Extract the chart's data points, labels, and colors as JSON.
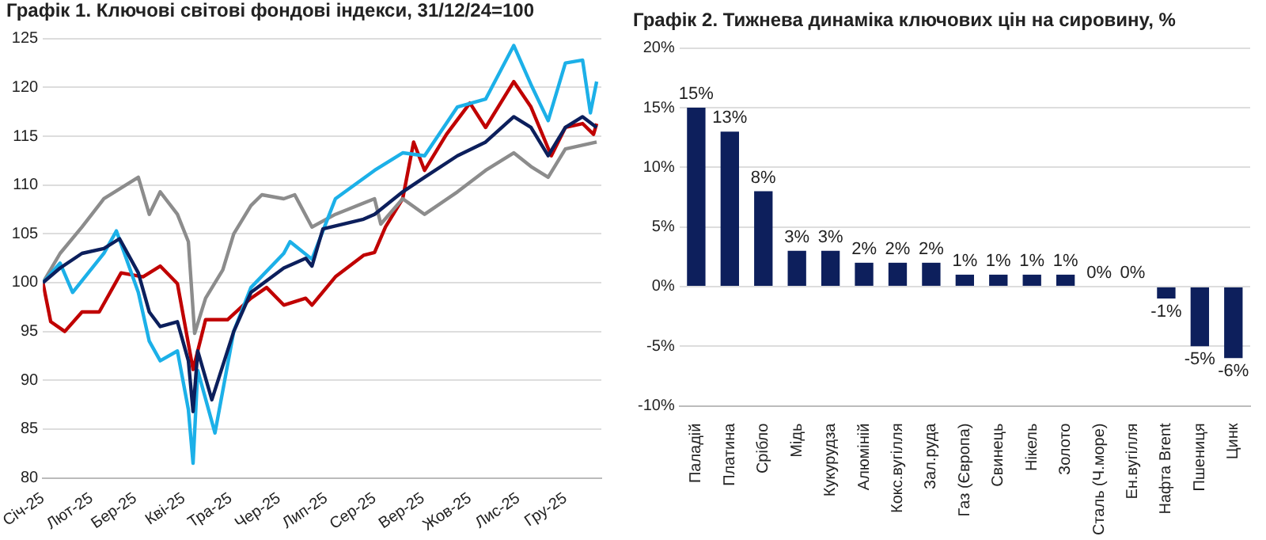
{
  "chart_data": [
    {
      "type": "line",
      "title": "Графік 1. Ключові світові фондові індекси, 31/12/24=100",
      "xlim": [
        "2025-01-01",
        "2025-12-24"
      ],
      "xticks": [
        {
          "value": "2025-01-01",
          "label": "Січ-25"
        },
        {
          "value": "2025-02-01",
          "label": "Лют-25"
        },
        {
          "value": "2025-03-01",
          "label": "Бер-25"
        },
        {
          "value": "2025-04-01",
          "label": "Кві-25"
        },
        {
          "value": "2025-05-01",
          "label": "Тра-25"
        },
        {
          "value": "2025-06-01",
          "label": "Чер-25"
        },
        {
          "value": "2025-07-01",
          "label": "Лип-25"
        },
        {
          "value": "2025-08-01",
          "label": "Сер-25"
        },
        {
          "value": "2025-09-01",
          "label": "Вер-25"
        },
        {
          "value": "2025-10-01",
          "label": "Жов-25"
        },
        {
          "value": "2025-11-01",
          "label": "Лис-25"
        },
        {
          "value": "2025-12-01",
          "label": "Гру-25"
        }
      ],
      "ylim": [
        80,
        125
      ],
      "yticks": [
        80,
        85,
        90,
        95,
        100,
        105,
        110,
        115,
        120,
        125
      ],
      "grid": "y",
      "marker": "none",
      "series": [
        {
          "color": "#0c1f5c",
          "x": [
            "2025-01-01",
            "2025-01-12",
            "2025-01-26",
            "2025-02-09",
            "2025-02-19",
            "2025-03-03",
            "2025-03-10",
            "2025-03-17",
            "2025-03-28",
            "2025-04-04",
            "2025-04-07",
            "2025-04-10",
            "2025-04-19",
            "2025-05-03",
            "2025-05-14",
            "2025-06-04",
            "2025-06-18",
            "2025-06-22",
            "2025-06-29",
            "2025-07-25",
            "2025-08-01",
            "2025-08-19",
            "2025-09-02",
            "2025-09-23",
            "2025-10-11",
            "2025-10-29",
            "2025-11-09",
            "2025-11-20",
            "2025-12-01",
            "2025-12-12",
            "2025-12-21"
          ],
          "values": [
            100,
            101.5,
            103,
            103.5,
            104.5,
            101,
            97,
            95.5,
            96,
            92,
            86.8,
            93,
            88,
            95,
            99,
            101.5,
            102.5,
            101.7,
            105.5,
            106.5,
            107,
            109.3,
            110.8,
            113,
            114.4,
            117,
            115.9,
            113,
            115.9,
            117,
            115.9
          ]
        },
        {
          "color": "#1cb0e8",
          "x": [
            "2025-01-01",
            "2025-01-12",
            "2025-01-20",
            "2025-02-09",
            "2025-02-17",
            "2025-03-03",
            "2025-03-10",
            "2025-03-17",
            "2025-03-28",
            "2025-04-04",
            "2025-04-07",
            "2025-04-10",
            "2025-04-21",
            "2025-05-03",
            "2025-05-14",
            "2025-06-04",
            "2025-06-08",
            "2025-06-22",
            "2025-07-07",
            "2025-08-01",
            "2025-08-19",
            "2025-09-02",
            "2025-09-23",
            "2025-10-11",
            "2025-10-29",
            "2025-11-09",
            "2025-11-20",
            "2025-12-01",
            "2025-12-12",
            "2025-12-17",
            "2025-12-21"
          ],
          "values": [
            100,
            102,
            99,
            103,
            105.3,
            99,
            94,
            92,
            93,
            87,
            81.5,
            91,
            84.6,
            95,
            99.5,
            103,
            104.2,
            102.4,
            108.6,
            111.5,
            113.3,
            113,
            118,
            118.8,
            124.3,
            120.3,
            116.6,
            122.5,
            122.8,
            117.4,
            120.6
          ]
        },
        {
          "color": "#8c8c8c",
          "x": [
            "2025-01-01",
            "2025-01-12",
            "2025-01-26",
            "2025-02-09",
            "2025-03-03",
            "2025-03-10",
            "2025-03-17",
            "2025-03-28",
            "2025-04-04",
            "2025-04-08",
            "2025-04-15",
            "2025-04-26",
            "2025-05-03",
            "2025-05-14",
            "2025-05-21",
            "2025-06-04",
            "2025-06-11",
            "2025-06-22",
            "2025-07-07",
            "2025-08-01",
            "2025-08-05",
            "2025-08-19",
            "2025-09-02",
            "2025-09-23",
            "2025-10-11",
            "2025-10-29",
            "2025-11-09",
            "2025-11-20",
            "2025-12-01",
            "2025-12-21"
          ],
          "values": [
            100,
            103,
            105.7,
            108.6,
            110.8,
            107,
            109.3,
            107,
            104.2,
            94.8,
            98.4,
            101.3,
            105,
            107.9,
            109,
            108.6,
            109,
            105.7,
            107,
            108.6,
            106,
            108.6,
            107,
            109.3,
            111.5,
            113.3,
            111.9,
            110.8,
            113.7,
            114.4
          ]
        },
        {
          "color": "#c00000",
          "x": [
            "2025-01-01",
            "2025-01-06",
            "2025-01-15",
            "2025-01-26",
            "2025-02-06",
            "2025-02-20",
            "2025-03-06",
            "2025-03-17",
            "2025-03-28",
            "2025-04-07",
            "2025-04-15",
            "2025-04-29",
            "2025-05-14",
            "2025-05-24",
            "2025-06-04",
            "2025-06-18",
            "2025-06-22",
            "2025-07-07",
            "2025-07-25",
            "2025-08-01",
            "2025-08-08",
            "2025-08-19",
            "2025-08-26",
            "2025-09-02",
            "2025-09-16",
            "2025-10-01",
            "2025-10-11",
            "2025-10-29",
            "2025-11-09",
            "2025-11-22",
            "2025-12-01",
            "2025-12-12",
            "2025-12-19",
            "2025-12-21"
          ],
          "values": [
            100,
            96,
            95,
            97,
            97,
            101,
            100.6,
            101.7,
            99.9,
            91.1,
            96.2,
            96.2,
            98.4,
            99.5,
            97.7,
            98.4,
            97.7,
            100.6,
            102.8,
            103.1,
            105.7,
            108.6,
            114.4,
            111.5,
            115.2,
            118.4,
            115.9,
            120.6,
            118,
            113,
            115.9,
            116.3,
            115.2,
            116.3
          ]
        }
      ]
    },
    {
      "type": "bar",
      "title": "Графік 2. Тижнева динаміка ключових цін на сировину, %",
      "categories": [
        "Паладій",
        "Платина",
        "Срібло",
        "Мідь",
        "Кукурудза",
        "Алюміній",
        "Кокс.вугілля",
        "Зал.руда",
        "Газ (Європа)",
        "Свинець",
        "Нікель",
        "Золото",
        "Сталь (Ч.море)",
        "Ен.вугілля",
        "Нафта Brent",
        "Пшениця",
        "Цинк"
      ],
      "values": [
        15,
        13,
        8,
        3,
        3,
        2,
        2,
        2,
        1,
        1,
        1,
        1,
        0,
        0,
        -1,
        -5,
        -6
      ],
      "value_labels": [
        "15%",
        "13%",
        "8%",
        "3%",
        "3%",
        "2%",
        "2%",
        "2%",
        "1%",
        "1%",
        "1%",
        "1%",
        "0%",
        "0%",
        "-1%",
        "-5%",
        "-6%"
      ],
      "color": "#0d1f5c",
      "ylim": [
        -10,
        20
      ],
      "yticks": [
        {
          "value": -10,
          "label": "-10%"
        },
        {
          "value": -5,
          "label": "-5%"
        },
        {
          "value": 0,
          "label": "0%"
        },
        {
          "value": 5,
          "label": "5%"
        },
        {
          "value": 10,
          "label": "10%"
        },
        {
          "value": 15,
          "label": "15%"
        },
        {
          "value": 20,
          "label": "20%"
        }
      ],
      "grid": "y"
    }
  ]
}
